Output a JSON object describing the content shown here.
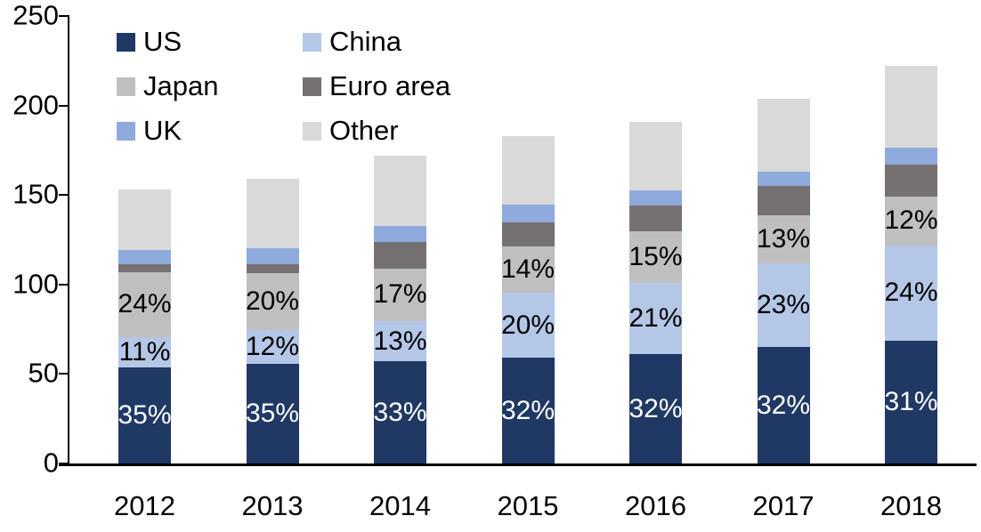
{
  "chart_data": {
    "type": "bar",
    "stacked": true,
    "title": "",
    "xlabel": "",
    "ylabel": "",
    "categories": [
      "2012",
      "2013",
      "2014",
      "2015",
      "2016",
      "2017",
      "2018"
    ],
    "series": [
      {
        "name": "US",
        "color": "#1F3864",
        "values": [
          53.5,
          55.5,
          57.0,
          59.0,
          61.0,
          65.0,
          68.5
        ],
        "labels": [
          "35%",
          "35%",
          "33%",
          "32%",
          "32%",
          "32%",
          "31%"
        ],
        "label_color": "#FFFFFF"
      },
      {
        "name": "China",
        "color": "#B4C7E7",
        "values": [
          17.0,
          19.0,
          22.5,
          36.5,
          40.0,
          47.0,
          53.5
        ],
        "labels": [
          "11%",
          "12%",
          "13%",
          "20%",
          "21%",
          "23%",
          "24%"
        ],
        "label_color": "#000000"
      },
      {
        "name": "Japan",
        "color": "#BFBFBF",
        "values": [
          36.5,
          32.0,
          29.5,
          26.0,
          28.5,
          26.5,
          27.0
        ],
        "labels": [
          "24%",
          "20%",
          "17%",
          "14%",
          "15%",
          "13%",
          "12%"
        ],
        "label_color": "#000000"
      },
      {
        "name": "Euro area",
        "color": "#767171",
        "values": [
          4.5,
          5.0,
          15.0,
          13.0,
          14.5,
          16.5,
          18.0
        ],
        "labels": null,
        "label_color": null
      },
      {
        "name": "UK",
        "color": "#8FAADC",
        "values": [
          8.0,
          9.0,
          8.5,
          10.0,
          8.5,
          8.0,
          9.5
        ],
        "labels": null,
        "label_color": null
      },
      {
        "name": "Other",
        "color": "#D9D9D9",
        "values": [
          33.5,
          38.5,
          39.5,
          38.5,
          38.5,
          41.0,
          45.5
        ],
        "labels": null,
        "label_color": null
      }
    ],
    "totals": [
      153,
      159,
      172,
      183,
      191,
      204,
      222
    ],
    "ylim": [
      0,
      250
    ],
    "yticks": [
      0,
      50,
      100,
      150,
      200,
      250
    ],
    "ytick_labels": [
      "0",
      "50",
      "100",
      "150",
      "200",
      "250"
    ],
    "grid": false,
    "legend_position": "top-left",
    "legend_columns": 2,
    "legend_order": [
      "US",
      "China",
      "Japan",
      "Euro area",
      "UK",
      "Other"
    ]
  },
  "colors": {
    "axis": "#000000",
    "background": "#FFFFFF",
    "bar_label_on_dark": "#FFFFFF",
    "bar_label_on_light": "#000000"
  }
}
